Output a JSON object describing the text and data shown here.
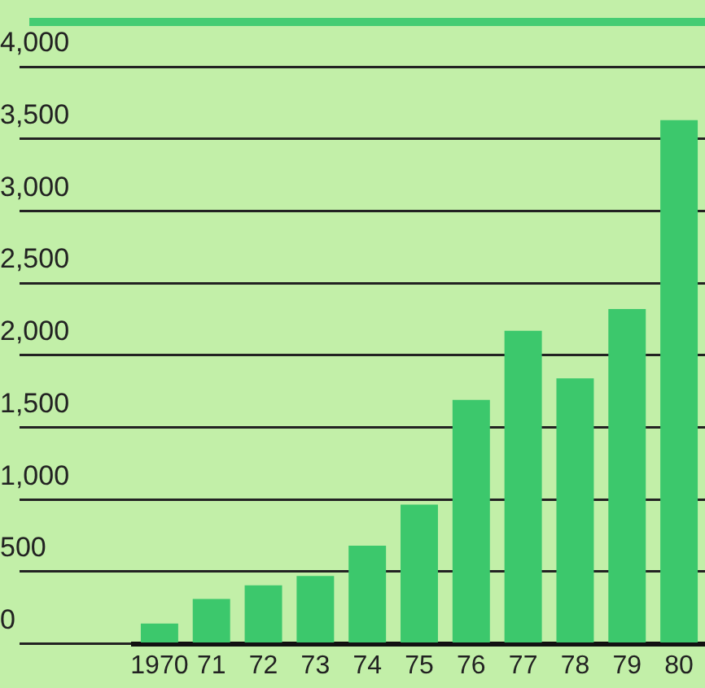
{
  "chart_data": {
    "type": "bar",
    "categories": [
      "1970",
      "71",
      "72",
      "73",
      "74",
      "75",
      "76",
      "77",
      "78",
      "79",
      "80"
    ],
    "values": [
      140,
      310,
      405,
      470,
      680,
      965,
      1690,
      2170,
      1840,
      2320,
      3630
    ],
    "color": "#3cc86c",
    "ylim": [
      0,
      4000
    ],
    "yticks": [
      {
        "value": 0,
        "label": "0"
      },
      {
        "value": 500,
        "label": "500"
      },
      {
        "value": 1000,
        "label": "1,000"
      },
      {
        "value": 1500,
        "label": "1,500"
      },
      {
        "value": 2000,
        "label": "2,000"
      },
      {
        "value": 2500,
        "label": "2,500"
      },
      {
        "value": 3000,
        "label": "3,000"
      },
      {
        "value": 3500,
        "label": "3,500"
      },
      {
        "value": 4000,
        "label": "4,000"
      }
    ],
    "grid": "y",
    "legend": false
  }
}
